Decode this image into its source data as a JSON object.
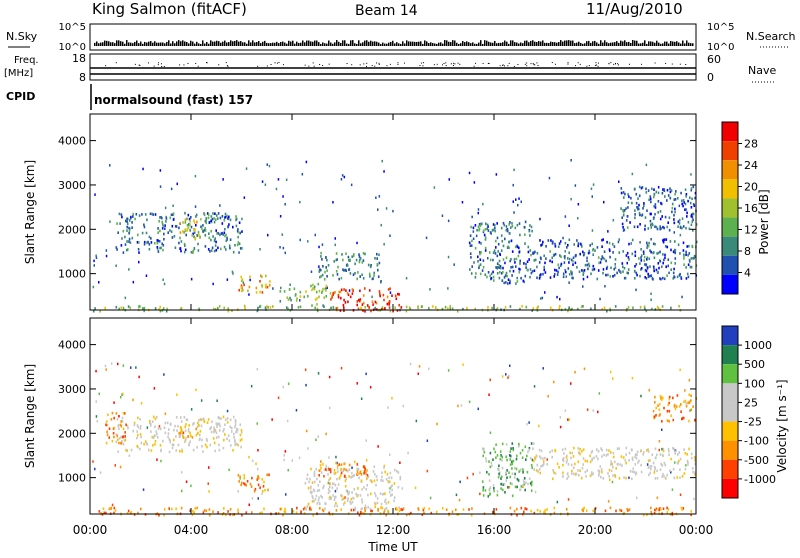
{
  "header": {
    "station": "King Salmon (fitACF)",
    "beam": "Beam 14",
    "date": "11/Aug/2010"
  },
  "strip_panels": {
    "nsky": {
      "label_left": "N.Sky",
      "label_right": "N.Search",
      "ticks_left": [
        "10^5",
        "10^0"
      ],
      "ticks_right": [
        "10^5",
        "10^0"
      ]
    },
    "freq": {
      "label_left_top": "Freq.",
      "label_left_bottom": "[MHz]",
      "label_right": "Nave",
      "ticks_left": [
        "18",
        "8"
      ],
      "ticks_right": [
        "60",
        "0"
      ]
    },
    "cpid": {
      "label": "CPID",
      "text": "normalsound (fast) 157"
    }
  },
  "colors": {
    "power_scale": [
      "#0000ff",
      "#2050b0",
      "#3a8a7a",
      "#5cb050",
      "#a0c030",
      "#f0c000",
      "#f09000",
      "#f04000",
      "#f00000"
    ],
    "velocity_scale": [
      "#ff0000",
      "#ff4000",
      "#ff9000",
      "#ffc000",
      "#c8c8c8",
      "#c8c8c8",
      "#60c040",
      "#208050",
      "#2040c0"
    ]
  },
  "chart_data": [
    {
      "type": "heatmap",
      "name": "power-panel",
      "xlabel": "",
      "ylabel": "Slant Range [km]",
      "ylim": [
        180,
        4600
      ],
      "yticks": [
        1000,
        2000,
        3000,
        4000
      ],
      "xlim": [
        0,
        24
      ],
      "colorbar": {
        "label": "Power [dB]",
        "ticks": [
          4,
          8,
          12,
          16,
          20,
          24,
          28
        ],
        "range": [
          0,
          32
        ]
      },
      "regions": [
        {
          "t": [
            0.1,
            24
          ],
          "r": [
            180,
            300
          ],
          "level": 0.45
        },
        {
          "t": [
            9.5,
            12.3
          ],
          "r": [
            180,
            700
          ],
          "level": 0.95
        },
        {
          "t": [
            8.5,
            9.5
          ],
          "r": [
            300,
            800
          ],
          "level": 0.45
        },
        {
          "t": [
            7.5,
            8.5
          ],
          "r": [
            400,
            700
          ],
          "level": 0.4
        },
        {
          "t": [
            5.8,
            7.1
          ],
          "r": [
            600,
            1000
          ],
          "level": 0.7
        },
        {
          "t": [
            9.0,
            11.5
          ],
          "r": [
            900,
            1500
          ],
          "level": 0.25
        },
        {
          "t": [
            1.0,
            6.0
          ],
          "r": [
            1500,
            2400
          ],
          "level": 0.2
        },
        {
          "t": [
            3.5,
            4.4
          ],
          "r": [
            1800,
            2300
          ],
          "level": 0.55
        },
        {
          "t": [
            15.0,
            17.5
          ],
          "r": [
            800,
            2200
          ],
          "level": 0.2
        },
        {
          "t": [
            17.5,
            24
          ],
          "r": [
            900,
            1800
          ],
          "level": 0.15
        },
        {
          "t": [
            21,
            24
          ],
          "r": [
            2000,
            3000
          ],
          "level": 0.15
        }
      ]
    },
    {
      "type": "heatmap",
      "name": "velocity-panel",
      "xlabel": "Time UT",
      "ylabel": "Slant Range [km]",
      "ylim": [
        180,
        4600
      ],
      "yticks": [
        1000,
        2000,
        3000,
        4000
      ],
      "xlim": [
        0,
        24
      ],
      "xticks": [
        "00:00",
        "04:00",
        "08:00",
        "12:00",
        "16:00",
        "20:00",
        "00:00"
      ],
      "colorbar": {
        "label": "Velocity [m s⁻¹]",
        "ticks": [
          1000,
          500,
          100,
          25,
          -25,
          -100,
          -500,
          -1000
        ]
      },
      "regions": [
        {
          "t": [
            0.1,
            24
          ],
          "r": [
            180,
            350
          ],
          "level": 0.3
        },
        {
          "t": [
            8.5,
            12.3
          ],
          "r": [
            300,
            1300
          ],
          "level": 0.5
        },
        {
          "t": [
            5.8,
            7.1
          ],
          "r": [
            700,
            1100
          ],
          "level": 0.15
        },
        {
          "t": [
            9.0,
            11.0
          ],
          "r": [
            1000,
            1400
          ],
          "level": 0.18
        },
        {
          "t": [
            1.0,
            6.0
          ],
          "r": [
            1600,
            2400
          ],
          "level": 0.5
        },
        {
          "t": [
            0.6,
            1.4
          ],
          "r": [
            1800,
            2500
          ],
          "level": 0.2
        },
        {
          "t": [
            3.5,
            4.4
          ],
          "r": [
            1900,
            2200
          ],
          "level": 0.2
        },
        {
          "t": [
            15.5,
            17.5
          ],
          "r": [
            600,
            1800
          ],
          "level": 0.75
        },
        {
          "t": [
            17.5,
            24
          ],
          "r": [
            1000,
            1700
          ],
          "level": 0.5
        },
        {
          "t": [
            22.3,
            24
          ],
          "r": [
            2300,
            2900
          ],
          "level": 0.2
        }
      ]
    }
  ]
}
